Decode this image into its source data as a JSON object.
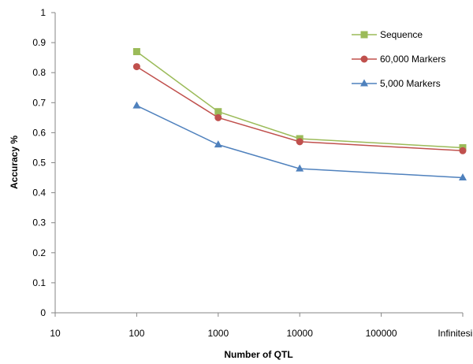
{
  "chart_data": {
    "type": "line",
    "categories": [
      "10",
      "100",
      "1000",
      "10000",
      "100000",
      "Infinitesimal"
    ],
    "series": [
      {
        "name": "Sequence",
        "color": "#9BBB59",
        "marker": "square",
        "values": [
          null,
          0.87,
          0.67,
          0.58,
          null,
          0.55
        ]
      },
      {
        "name": "60,000 Markers",
        "color": "#C0504D",
        "marker": "circle",
        "values": [
          null,
          0.82,
          0.65,
          0.57,
          null,
          0.54
        ]
      },
      {
        "name": "5,000 Markers",
        "color": "#4F81BD",
        "marker": "triangle",
        "values": [
          null,
          0.69,
          0.56,
          0.48,
          null,
          0.45
        ]
      }
    ],
    "xlabel": "Number of QTL",
    "ylabel": "Accuracy %",
    "ylim": [
      0,
      1
    ],
    "yticks": [
      "0",
      "0.1",
      "0.2",
      "0.3",
      "0.4",
      "0.5",
      "0.6",
      "0.7",
      "0.8",
      "0.9",
      "1"
    ],
    "grid": false,
    "legend": "top-right"
  }
}
